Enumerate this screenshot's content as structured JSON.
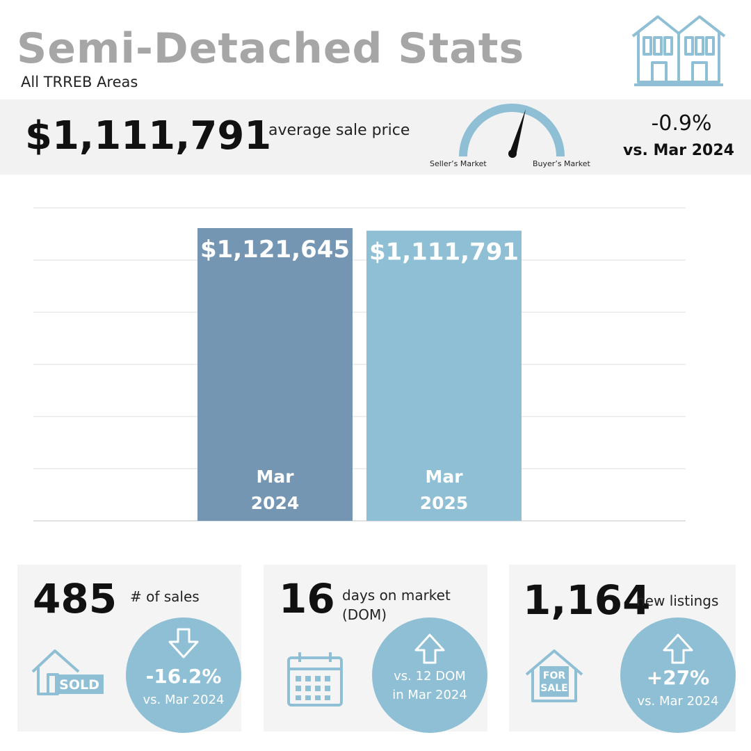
{
  "header": {
    "title": "Semi-Detached Stats",
    "subtitle": "All TRREB Areas"
  },
  "summary": {
    "price": "$1,111,791",
    "label": "average sale price",
    "gauge_left": "Seller’s Market",
    "gauge_right": "Buyer’s Market",
    "change": "-0.9%",
    "vs": "vs. Mar 2024"
  },
  "chart_data": {
    "type": "bar",
    "categories": [
      "Mar 2024",
      "Mar 2025"
    ],
    "category_lines": [
      [
        "Mar",
        "2024"
      ],
      [
        "Mar",
        "2025"
      ]
    ],
    "values": [
      1121645,
      1111791
    ],
    "value_labels": [
      "$1,121,645",
      "$1,111,791"
    ],
    "colors": [
      "#7496b3",
      "#8fbfd4"
    ],
    "title": "",
    "xlabel": "",
    "ylabel": "",
    "grid": true
  },
  "cards": [
    {
      "value": "485",
      "label": "# of sales",
      "arrow": "down",
      "circle_big": "-16.2%",
      "circle_small": "vs. Mar 2024",
      "icon": "sold-house-icon",
      "icon_text": "SOLD"
    },
    {
      "value": "16",
      "label": "days on market (DOM)",
      "arrow": "up",
      "circle_line1": "vs. 12 DOM",
      "circle_line2": "in Mar 2024",
      "icon": "calendar-icon"
    },
    {
      "value": "1,164",
      "label": "new listings",
      "arrow": "up",
      "circle_big": "+27%",
      "circle_small": "vs. Mar 2024",
      "icon": "for-sale-house-icon",
      "icon_text_1": "FOR",
      "icon_text_2": "SALE"
    }
  ],
  "colors": {
    "title": "#a6a6a6",
    "accent_light": "#8fbfd4",
    "accent_dark": "#7496b3",
    "band": "#f2f2f2",
    "card": "#f4f4f4"
  }
}
